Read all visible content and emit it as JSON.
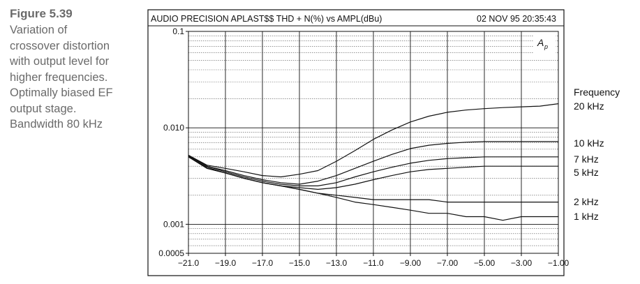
{
  "caption": {
    "figure_label": "Figure 5.39",
    "lines": [
      "Variation of",
      "crossover distortion",
      "with output level for",
      "higher frequencies.",
      "Optimally biased EF",
      "output stage.",
      "Bandwidth 80 kHz"
    ]
  },
  "chart_data": {
    "type": "line",
    "title": "AUDIO PRECISION APLAST$$ THD + N(%) vs AMPL(dBu)",
    "timestamp": "02 NOV 95 20:35:43",
    "logo_text": "Ap",
    "legend_title": "Frequency",
    "xlim": [
      -21,
      -1
    ],
    "ylim": [
      0.0005,
      0.1
    ],
    "y_scale": "log",
    "grid": true,
    "x_tick_labels": [
      "−21.0",
      "−19.0",
      "−17.0",
      "−15.0",
      "−13.0",
      "−11.0",
      "−9.00",
      "−7.00",
      "−5.00",
      "−3.00",
      "−1.00"
    ],
    "x_ticks": [
      -21,
      -19,
      -17,
      -15,
      -13,
      -11,
      -9,
      -7,
      -5,
      -3,
      -1
    ],
    "y_tick_labels": [
      "0.1",
      "0.010",
      "0.001",
      "0.0005"
    ],
    "y_ticks": [
      0.1,
      0.01,
      0.001,
      0.0005
    ],
    "series": [
      {
        "name": "20 kHz",
        "x": [
          -21,
          -20,
          -19,
          -18,
          -17,
          -16,
          -15,
          -14,
          -13,
          -12,
          -11,
          -10,
          -9,
          -8,
          -7,
          -6,
          -5,
          -4,
          -3,
          -2,
          -1
        ],
        "y": [
          0.0052,
          0.0041,
          0.0038,
          0.0035,
          0.0032,
          0.0031,
          0.0033,
          0.0036,
          0.0045,
          0.0058,
          0.0076,
          0.0095,
          0.0115,
          0.0132,
          0.0145,
          0.0153,
          0.0158,
          0.0162,
          0.0165,
          0.0168,
          0.0178
        ]
      },
      {
        "name": "10 kHz",
        "x": [
          -21,
          -20,
          -19,
          -18,
          -17,
          -16,
          -15,
          -14,
          -13,
          -12,
          -11,
          -10,
          -9,
          -8,
          -7,
          -6,
          -5,
          -4,
          -3,
          -2,
          -1
        ],
        "y": [
          0.0052,
          0.004,
          0.0036,
          0.0032,
          0.0029,
          0.0027,
          0.0026,
          0.0028,
          0.0032,
          0.0038,
          0.0045,
          0.0053,
          0.0061,
          0.0066,
          0.0069,
          0.0071,
          0.0072,
          0.0072,
          0.0072,
          0.0072,
          0.0072
        ]
      },
      {
        "name": "7 kHz",
        "x": [
          -21,
          -20,
          -19,
          -18,
          -17,
          -16,
          -15,
          -14,
          -13,
          -12,
          -11,
          -10,
          -9,
          -8,
          -7,
          -6,
          -5,
          -4,
          -3,
          -2,
          -1
        ],
        "y": [
          0.0051,
          0.004,
          0.0035,
          0.0031,
          0.0028,
          0.0026,
          0.0025,
          0.0025,
          0.0027,
          0.0031,
          0.0035,
          0.0039,
          0.0043,
          0.0046,
          0.0048,
          0.0049,
          0.005,
          0.005,
          0.005,
          0.005,
          0.005
        ]
      },
      {
        "name": "5 kHz",
        "x": [
          -21,
          -20,
          -19,
          -18,
          -17,
          -16,
          -15,
          -14,
          -13,
          -12,
          -11,
          -10,
          -9,
          -8,
          -7,
          -6,
          -5,
          -4,
          -3,
          -2,
          -1
        ],
        "y": [
          0.005,
          0.0039,
          0.0034,
          0.003,
          0.0027,
          0.0025,
          0.0024,
          0.0023,
          0.0024,
          0.0026,
          0.0029,
          0.0032,
          0.0035,
          0.0037,
          0.0038,
          0.0039,
          0.004,
          0.004,
          0.004,
          0.004,
          0.004
        ]
      },
      {
        "name": "2 kHz",
        "x": [
          -21,
          -20,
          -19,
          -18,
          -17,
          -16,
          -15,
          -14,
          -13,
          -12,
          -11,
          -10,
          -9,
          -8,
          -7,
          -6,
          -5,
          -4,
          -3,
          -2,
          -1
        ],
        "y": [
          0.005,
          0.0038,
          0.0034,
          0.003,
          0.0027,
          0.0025,
          0.0023,
          0.0021,
          0.002,
          0.0019,
          0.0018,
          0.0018,
          0.0018,
          0.0018,
          0.0017,
          0.0017,
          0.0017,
          0.0017,
          0.0017,
          0.0017,
          0.0017
        ]
      },
      {
        "name": "1 kHz",
        "x": [
          -21,
          -20,
          -19,
          -18,
          -17,
          -16,
          -15,
          -14,
          -13,
          -12,
          -11,
          -10,
          -9,
          -8,
          -7,
          -6,
          -5,
          -4,
          -3,
          -2,
          -1
        ],
        "y": [
          0.005,
          0.0038,
          0.0034,
          0.003,
          0.0027,
          0.0025,
          0.0023,
          0.0021,
          0.0019,
          0.0017,
          0.0016,
          0.0015,
          0.0014,
          0.0013,
          0.0013,
          0.0012,
          0.0012,
          0.0011,
          0.0012,
          0.0012,
          0.0012
        ]
      }
    ]
  }
}
